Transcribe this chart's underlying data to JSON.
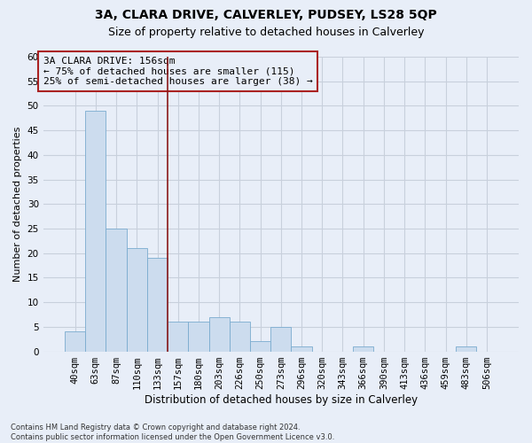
{
  "title": "3A, CLARA DRIVE, CALVERLEY, PUDSEY, LS28 5QP",
  "subtitle": "Size of property relative to detached houses in Calverley",
  "xlabel": "Distribution of detached houses by size in Calverley",
  "ylabel": "Number of detached properties",
  "categories": [
    "40sqm",
    "63sqm",
    "87sqm",
    "110sqm",
    "133sqm",
    "157sqm",
    "180sqm",
    "203sqm",
    "226sqm",
    "250sqm",
    "273sqm",
    "296sqm",
    "320sqm",
    "343sqm",
    "366sqm",
    "390sqm",
    "413sqm",
    "436sqm",
    "459sqm",
    "483sqm",
    "506sqm"
  ],
  "values": [
    4,
    49,
    25,
    21,
    19,
    6,
    6,
    7,
    6,
    2,
    5,
    1,
    0,
    0,
    1,
    0,
    0,
    0,
    0,
    1,
    0
  ],
  "bar_color": "#ccdcee",
  "bar_edge_color": "#7aabcf",
  "vline_color": "#8b1a1a",
  "vline_x": 4.5,
  "annotation_box_text": "3A CLARA DRIVE: 156sqm\n← 75% of detached houses are smaller (115)\n25% of semi-detached houses are larger (38) →",
  "annotation_box_edge_color": "#aa2222",
  "ylim": [
    0,
    60
  ],
  "yticks": [
    0,
    5,
    10,
    15,
    20,
    25,
    30,
    35,
    40,
    45,
    50,
    55,
    60
  ],
  "footnote": "Contains HM Land Registry data © Crown copyright and database right 2024.\nContains public sector information licensed under the Open Government Licence v3.0.",
  "background_color": "#e8eef8",
  "grid_color": "#c8d0dc",
  "title_fontsize": 10,
  "subtitle_fontsize": 9,
  "xlabel_fontsize": 8.5,
  "ylabel_fontsize": 8,
  "annotation_fontsize": 8,
  "tick_fontsize": 7.5,
  "footnote_fontsize": 6
}
